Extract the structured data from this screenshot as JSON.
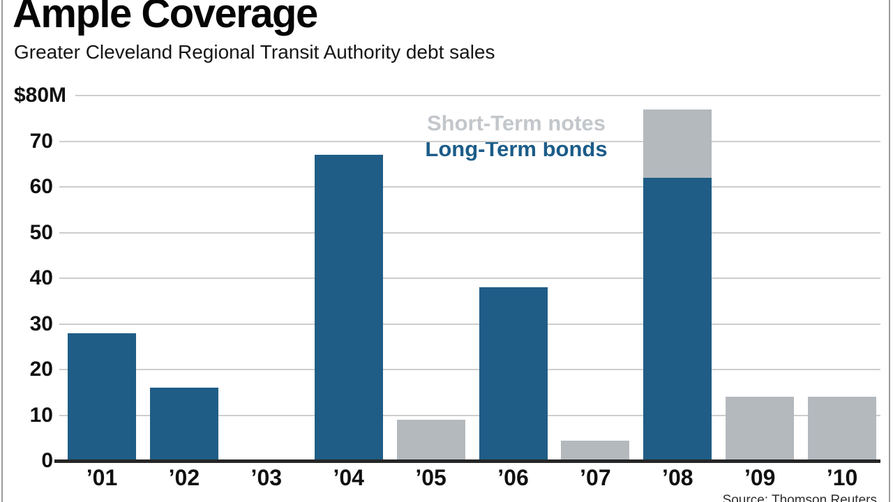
{
  "chart_data": {
    "type": "bar",
    "stacked": true,
    "title": "Ample Coverage",
    "subtitle": "Greater Cleveland Regional Transit Authority debt sales",
    "categories": [
      "’01",
      "’02",
      "’03",
      "’04",
      "’05",
      "’06",
      "’07",
      "’08",
      "’09",
      "’10"
    ],
    "series": [
      {
        "name": "Short-Term notes",
        "color": "#b4b9be",
        "legend_color": "#c3c7cb",
        "values": [
          0,
          0,
          0,
          0,
          9,
          0,
          4.5,
          15,
          14,
          14
        ]
      },
      {
        "name": "Long-Term bonds",
        "color": "#1f5d86",
        "legend_color": "#1b5c89",
        "values": [
          28,
          16,
          0,
          67,
          0,
          38,
          0,
          62,
          0,
          0
        ]
      }
    ],
    "xlabel": "",
    "ylabel": "",
    "ylim": [
      0,
      80
    ],
    "grid": true,
    "legend_position": "top-center",
    "y_axis": {
      "top_label": "$80M",
      "ticks": [
        [
          80,
          "$80M"
        ],
        [
          70,
          "70"
        ],
        [
          60,
          "60"
        ],
        [
          50,
          "50"
        ],
        [
          40,
          "40"
        ],
        [
          30,
          "30"
        ],
        [
          20,
          "20"
        ],
        [
          10,
          "10"
        ],
        [
          0,
          "0"
        ]
      ]
    },
    "source": "Source: Thomson Reuters"
  }
}
